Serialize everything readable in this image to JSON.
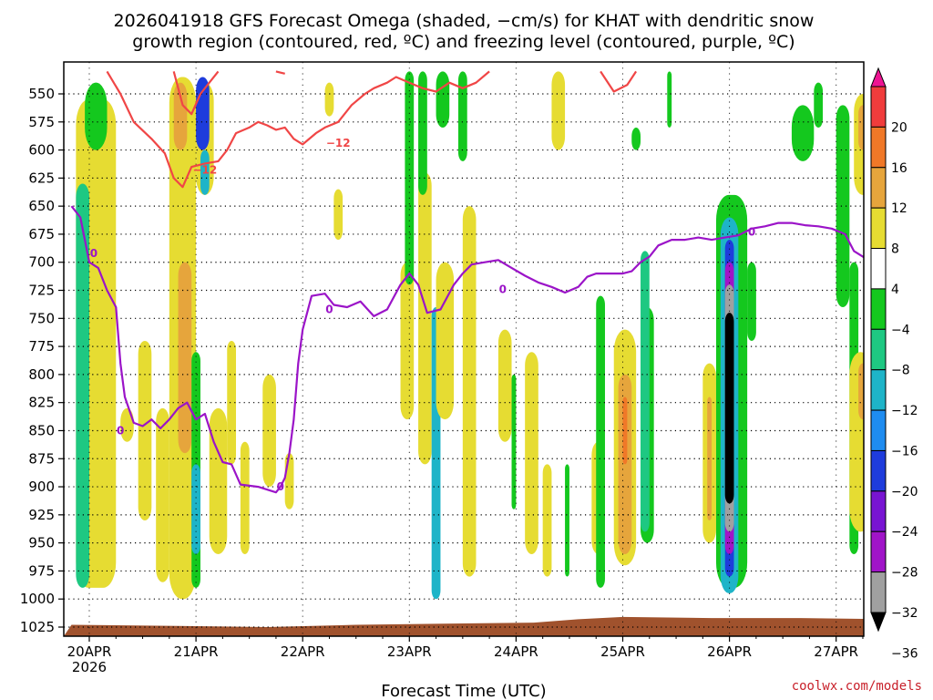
{
  "title_line1": "2026041918 GFS Forecast Omega (shaded, −cm/s) for KHAT with dendritic snow",
  "title_line2": "growth region (contoured, red, ºC) and freezing level (contoured, purple, ºC)",
  "credit": "coolwx.com/models",
  "chart_data": {
    "type": "heatmap",
    "xlabel": "Forecast Time (UTC)",
    "x_year_label": "2026",
    "x_ticks": [
      "20APR",
      "21APR",
      "22APR",
      "23APR",
      "24APR",
      "25APR",
      "26APR",
      "27APR"
    ],
    "y_ticks": [
      "550",
      "575",
      "600",
      "625",
      "650",
      "675",
      "700",
      "725",
      "750",
      "775",
      "800",
      "825",
      "850",
      "875",
      "900",
      "925",
      "950",
      "975",
      "1000",
      "1025"
    ],
    "y_axis_pressure_hPa": [
      530,
      1035
    ],
    "y_reversed": true,
    "x_range_hours": [
      -4,
      180
    ],
    "grid": true,
    "colorbar": {
      "labels": [
        "20",
        "16",
        "12",
        "8",
        "4",
        "−4",
        "−8",
        "−12",
        "−16",
        "−20",
        "−24",
        "−28",
        "−32",
        "−36"
      ],
      "colors": [
        "#ee1493",
        "#f03c3c",
        "#f07828",
        "#e6a53c",
        "#e6dc32",
        "#ffffff",
        "#14c81e",
        "#1ec882",
        "#1eb4c8",
        "#1e8cf0",
        "#1e3cdc",
        "#7814d2",
        "#a014c8",
        "#a0a0a0",
        "#000000"
      ]
    },
    "shading_colors": {
      "yellow": "#e6dc32",
      "orange": "#e6a53c",
      "darkorange": "#f07828",
      "green": "#14c81e",
      "teal": "#1ec882",
      "cyan": "#1eb4c8",
      "lightblue": "#1e8cf0",
      "blue": "#1e3cdc",
      "purple": "#a014c8",
      "gray": "#a0a0a0",
      "black": "#000000",
      "ground": "#a0522d"
    },
    "shading_blobs": [
      {
        "c": "yellow",
        "t": [
          -3,
          6
        ],
        "p": [
          555,
          990
        ]
      },
      {
        "c": "teal",
        "t": [
          -3,
          0
        ],
        "p": [
          630,
          990
        ]
      },
      {
        "c": "green",
        "t": [
          -1,
          4
        ],
        "p": [
          540,
          600
        ]
      },
      {
        "c": "yellow",
        "t": [
          7,
          10
        ],
        "p": [
          830,
          860
        ]
      },
      {
        "c": "yellow",
        "t": [
          11,
          14
        ],
        "p": [
          770,
          930
        ]
      },
      {
        "c": "yellow",
        "t": [
          15,
          18
        ],
        "p": [
          830,
          985
        ]
      },
      {
        "c": "yellow",
        "t": [
          18,
          24
        ],
        "p": [
          535,
          1000
        ]
      },
      {
        "c": "orange",
        "t": [
          19,
          22
        ],
        "p": [
          540,
          600
        ]
      },
      {
        "c": "orange",
        "t": [
          20,
          23
        ],
        "p": [
          700,
          870
        ]
      },
      {
        "c": "green",
        "t": [
          23,
          25
        ],
        "p": [
          780,
          990
        ]
      },
      {
        "c": "cyan",
        "t": [
          23,
          25
        ],
        "p": [
          880,
          960
        ]
      },
      {
        "c": "yellow",
        "t": [
          24,
          28
        ],
        "p": [
          540,
          640
        ]
      },
      {
        "c": "blue",
        "t": [
          24,
          27
        ],
        "p": [
          535,
          600
        ]
      },
      {
        "c": "cyan",
        "t": [
          25,
          27
        ],
        "p": [
          600,
          640
        ]
      },
      {
        "c": "yellow",
        "t": [
          27,
          31
        ],
        "p": [
          830,
          960
        ]
      },
      {
        "c": "yellow",
        "t": [
          31,
          33
        ],
        "p": [
          770,
          880
        ]
      },
      {
        "c": "yellow",
        "t": [
          34,
          36
        ],
        "p": [
          860,
          960
        ]
      },
      {
        "c": "yellow",
        "t": [
          39,
          42
        ],
        "p": [
          800,
          900
        ]
      },
      {
        "c": "yellow",
        "t": [
          44,
          46
        ],
        "p": [
          870,
          920
        ]
      },
      {
        "c": "yellow",
        "t": [
          53,
          55
        ],
        "p": [
          540,
          570
        ]
      },
      {
        "c": "yellow",
        "t": [
          55,
          57
        ],
        "p": [
          635,
          680
        ]
      },
      {
        "c": "yellow",
        "t": [
          70,
          73
        ],
        "p": [
          700,
          840
        ]
      },
      {
        "c": "yellow",
        "t": [
          74,
          77
        ],
        "p": [
          620,
          880
        ]
      },
      {
        "c": "green",
        "t": [
          71,
          73
        ],
        "p": [
          530,
          720
        ]
      },
      {
        "c": "green",
        "t": [
          74,
          76
        ],
        "p": [
          530,
          640
        ]
      },
      {
        "c": "cyan",
        "t": [
          77,
          79
        ],
        "p": [
          740,
          1000
        ]
      },
      {
        "c": "green",
        "t": [
          78,
          81
        ],
        "p": [
          530,
          580
        ]
      },
      {
        "c": "yellow",
        "t": [
          78,
          82
        ],
        "p": [
          700,
          840
        ]
      },
      {
        "c": "green",
        "t": [
          83,
          85
        ],
        "p": [
          530,
          610
        ]
      },
      {
        "c": "yellow",
        "t": [
          84,
          87
        ],
        "p": [
          650,
          980
        ]
      },
      {
        "c": "yellow",
        "t": [
          92,
          95
        ],
        "p": [
          760,
          860
        ]
      },
      {
        "c": "green",
        "t": [
          95,
          96
        ],
        "p": [
          800,
          920
        ]
      },
      {
        "c": "yellow",
        "t": [
          98,
          101
        ],
        "p": [
          780,
          960
        ]
      },
      {
        "c": "yellow",
        "t": [
          102,
          104
        ],
        "p": [
          880,
          980
        ]
      },
      {
        "c": "yellow",
        "t": [
          104,
          107
        ],
        "p": [
          530,
          600
        ]
      },
      {
        "c": "green",
        "t": [
          107,
          108
        ],
        "p": [
          880,
          980
        ]
      },
      {
        "c": "yellow",
        "t": [
          113,
          116
        ],
        "p": [
          860,
          960
        ]
      },
      {
        "c": "green",
        "t": [
          114,
          116
        ],
        "p": [
          730,
          990
        ]
      },
      {
        "c": "yellow",
        "t": [
          118,
          123
        ],
        "p": [
          760,
          970
        ]
      },
      {
        "c": "orange",
        "t": [
          119,
          122
        ],
        "p": [
          800,
          960
        ]
      },
      {
        "c": "darkorange",
        "t": [
          120,
          121
        ],
        "p": [
          820,
          880
        ]
      },
      {
        "c": "green",
        "t": [
          122,
          124
        ],
        "p": [
          580,
          600
        ]
      },
      {
        "c": "green",
        "t": [
          124,
          127
        ],
        "p": [
          740,
          950
        ]
      },
      {
        "c": "teal",
        "t": [
          124,
          126
        ],
        "p": [
          690,
          940
        ]
      },
      {
        "c": "green",
        "t": [
          130,
          131
        ],
        "p": [
          530,
          580
        ]
      },
      {
        "c": "yellow",
        "t": [
          138,
          141
        ],
        "p": [
          790,
          950
        ]
      },
      {
        "c": "orange",
        "t": [
          139,
          140
        ],
        "p": [
          820,
          930
        ]
      },
      {
        "c": "green",
        "t": [
          141,
          148
        ],
        "p": [
          640,
          990
        ]
      },
      {
        "c": "cyan",
        "t": [
          142,
          146
        ],
        "p": [
          660,
          995
        ]
      },
      {
        "c": "blue",
        "t": [
          143,
          145
        ],
        "p": [
          680,
          980
        ]
      },
      {
        "c": "purple",
        "t": [
          143,
          145
        ],
        "p": [
          700,
          960
        ]
      },
      {
        "c": "gray",
        "t": [
          143,
          145
        ],
        "p": [
          720,
          940
        ]
      },
      {
        "c": "black",
        "t": [
          143,
          145
        ],
        "p": [
          745,
          915
        ]
      },
      {
        "c": "green",
        "t": [
          148,
          150
        ],
        "p": [
          700,
          770
        ]
      },
      {
        "c": "green",
        "t": [
          158,
          163
        ],
        "p": [
          560,
          610
        ]
      },
      {
        "c": "green",
        "t": [
          163,
          165
        ],
        "p": [
          540,
          580
        ]
      },
      {
        "c": "yellow",
        "t": [
          172,
          176
        ],
        "p": [
          550,
          640
        ]
      },
      {
        "c": "orange",
        "t": [
          173,
          175
        ],
        "p": [
          560,
          600
        ]
      },
      {
        "c": "green",
        "t": [
          168,
          171
        ],
        "p": [
          560,
          740
        ]
      },
      {
        "c": "green",
        "t": [
          171,
          173
        ],
        "p": [
          700,
          960
        ]
      },
      {
        "c": "yellow",
        "t": [
          171,
          176
        ],
        "p": [
          780,
          940
        ]
      },
      {
        "c": "orange",
        "t": [
          173,
          175
        ],
        "p": [
          790,
          840
        ]
      },
      {
        "c": "yellow",
        "t": [
          177,
          178
        ],
        "p": [
          530,
          540
        ]
      }
    ],
    "ground_top_pressure": [
      [
        -4,
        1023
      ],
      [
        20,
        1024
      ],
      [
        40,
        1025
      ],
      [
        60,
        1023
      ],
      [
        80,
        1022
      ],
      [
        100,
        1021
      ],
      [
        110,
        1018
      ],
      [
        120,
        1016
      ],
      [
        140,
        1017
      ],
      [
        160,
        1017
      ],
      [
        180,
        1018
      ]
    ],
    "dendritic_contours": {
      "color": "#f04646",
      "label": "−12",
      "lines": [
        [
          [
            4,
            530
          ],
          [
            7,
            550
          ],
          [
            10,
            575
          ],
          [
            14,
            590
          ],
          [
            17,
            603
          ],
          [
            19,
            625
          ],
          [
            21,
            633
          ],
          [
            23,
            615
          ],
          [
            26,
            612
          ],
          [
            29,
            610
          ],
          [
            31,
            600
          ],
          [
            33,
            585
          ],
          [
            36,
            580
          ],
          [
            38,
            575
          ],
          [
            40,
            578
          ],
          [
            42,
            582
          ],
          [
            44,
            580
          ],
          [
            46,
            590
          ],
          [
            48,
            595
          ],
          [
            51,
            585
          ],
          [
            53,
            580
          ],
          [
            56,
            575
          ],
          [
            59,
            560
          ],
          [
            62,
            550
          ],
          [
            64,
            545
          ],
          [
            67,
            540
          ],
          [
            69,
            535
          ],
          [
            72,
            540
          ],
          [
            75,
            545
          ],
          [
            78,
            548
          ],
          [
            81,
            540
          ],
          [
            84,
            545
          ],
          [
            87,
            540
          ],
          [
            90,
            530
          ]
        ],
        [
          [
            19,
            530
          ],
          [
            21,
            560
          ],
          [
            23,
            568
          ],
          [
            25,
            550
          ],
          [
            27,
            540
          ],
          [
            29,
            530
          ]
        ],
        [
          [
            42,
            530
          ],
          [
            44,
            532
          ]
        ],
        [
          [
            115,
            530
          ],
          [
            118,
            548
          ],
          [
            121,
            542
          ],
          [
            123,
            530
          ]
        ]
      ],
      "label_positions": [
        [
          56,
          594
        ],
        [
          26,
          618
        ]
      ]
    },
    "freezing_contours": {
      "color": "#9b14c8",
      "label": "0",
      "lines": [
        [
          [
            -4,
            650
          ],
          [
            -2,
            660
          ],
          [
            0,
            700
          ],
          [
            2,
            705
          ],
          [
            4,
            725
          ],
          [
            6,
            740
          ],
          [
            7,
            790
          ],
          [
            8,
            820
          ],
          [
            10,
            843
          ],
          [
            12,
            846
          ],
          [
            14,
            840
          ],
          [
            16,
            848
          ],
          [
            18,
            840
          ],
          [
            20,
            830
          ],
          [
            22,
            825
          ],
          [
            24,
            840
          ],
          [
            26,
            835
          ],
          [
            28,
            860
          ],
          [
            30,
            878
          ],
          [
            32,
            880
          ],
          [
            34,
            898
          ],
          [
            38,
            900
          ],
          [
            42,
            905
          ],
          [
            43,
            900
          ],
          [
            44,
            892
          ],
          [
            45,
            870
          ],
          [
            46,
            840
          ],
          [
            47,
            790
          ],
          [
            48,
            760
          ],
          [
            50,
            730
          ],
          [
            53,
            728
          ],
          [
            55,
            738
          ],
          [
            58,
            740
          ],
          [
            61,
            735
          ],
          [
            64,
            748
          ],
          [
            67,
            742
          ],
          [
            70,
            720
          ],
          [
            72,
            710
          ],
          [
            74,
            720
          ],
          [
            76,
            745
          ],
          [
            79,
            742
          ],
          [
            82,
            720
          ],
          [
            84,
            710
          ],
          [
            86,
            702
          ],
          [
            89,
            700
          ],
          [
            92,
            698
          ],
          [
            95,
            705
          ],
          [
            98,
            712
          ],
          [
            101,
            718
          ],
          [
            104,
            722
          ],
          [
            107,
            727
          ],
          [
            110,
            722
          ],
          [
            112,
            713
          ],
          [
            114,
            710
          ],
          [
            117,
            710
          ],
          [
            120,
            710
          ],
          [
            122,
            708
          ],
          [
            124,
            700
          ],
          [
            126,
            695
          ],
          [
            128,
            685
          ],
          [
            131,
            680
          ],
          [
            134,
            680
          ],
          [
            137,
            678
          ],
          [
            140,
            680
          ],
          [
            143,
            678
          ],
          [
            146,
            676
          ],
          [
            149,
            670
          ],
          [
            152,
            668
          ],
          [
            155,
            665
          ],
          [
            158,
            665
          ],
          [
            161,
            667
          ],
          [
            164,
            668
          ],
          [
            167,
            670
          ],
          [
            170,
            675
          ],
          [
            172,
            690
          ],
          [
            174,
            695
          ],
          [
            177,
            700
          ],
          [
            180,
            700
          ]
        ]
      ],
      "label_positions": [
        [
          1,
          692
        ],
        [
          7,
          850
        ],
        [
          43,
          900
        ],
        [
          54,
          742
        ],
        [
          93,
          724
        ],
        [
          149,
          673
        ]
      ]
    }
  }
}
